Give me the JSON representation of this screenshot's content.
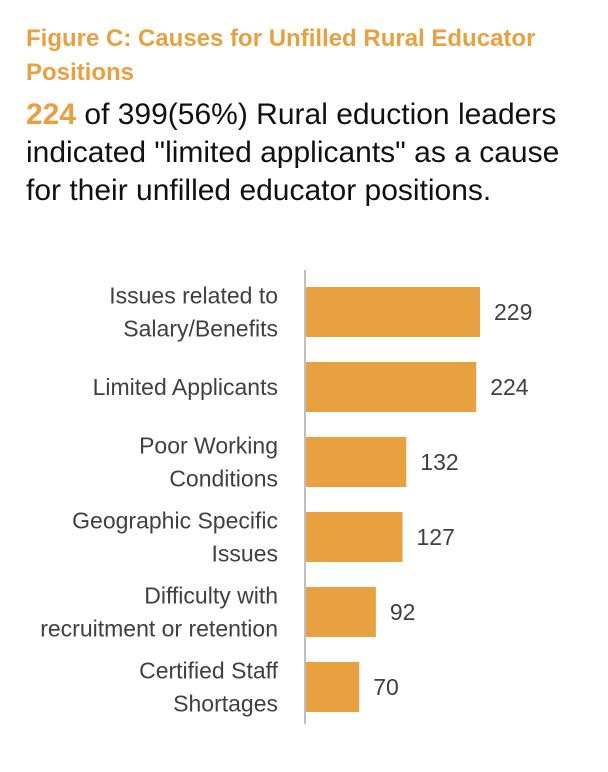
{
  "header": {
    "title": "Figure C: Causes for Unfilled Rural Educator Positions",
    "stat_highlight": "224",
    "stat_text": " of 399(56%) Rural eduction leaders indicated \"limited applicants\" as a cause for their unfilled educator positions."
  },
  "chart_data": {
    "type": "bar",
    "orientation": "horizontal",
    "categories": [
      [
        "Issues related to",
        "Salary/Benefits"
      ],
      [
        "Limited Applicants"
      ],
      [
        "Poor Working",
        "Conditions"
      ],
      [
        "Geographic Specific",
        "Issues"
      ],
      [
        "Difficulty with",
        "recruitment or retention"
      ],
      [
        "Certified Staff",
        "Shortages"
      ]
    ],
    "values": [
      229,
      224,
      132,
      127,
      92,
      70
    ],
    "value_labels": [
      "229",
      "224",
      "132",
      "127",
      "92",
      "70"
    ],
    "bar_color": "#E9A040",
    "axis_color": "#BFBFBF",
    "xlim": [
      0,
      229
    ],
    "data_labels": true,
    "grid": false,
    "legend": "none"
  }
}
